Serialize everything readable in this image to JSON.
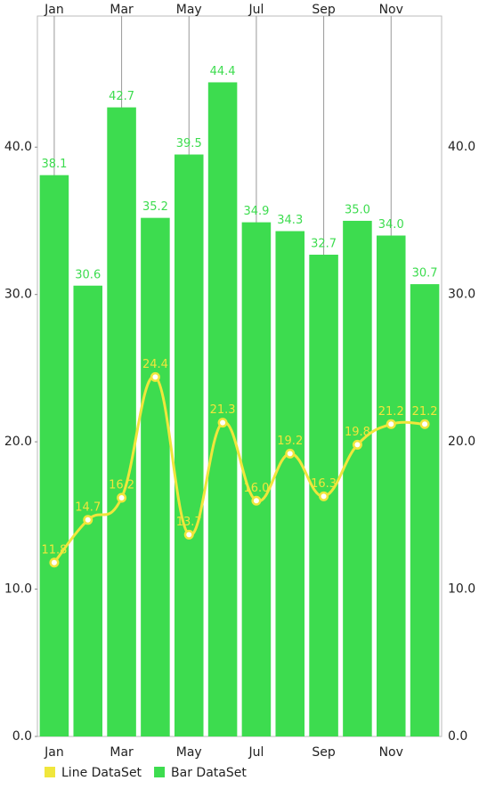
{
  "chart_data": {
    "type": "combined",
    "categories": [
      "Jan",
      null,
      "Mar",
      null,
      "May",
      null,
      "Jul",
      null,
      "Sep",
      null,
      "Nov",
      null
    ],
    "series": [
      {
        "name": "Line DataSet",
        "type": "line",
        "color": "#f0e63c",
        "values": [
          11.8,
          14.7,
          16.2,
          24.4,
          13.7,
          21.3,
          16.0,
          19.2,
          16.3,
          19.8,
          21.2,
          21.2
        ],
        "value_labels": [
          "11.8",
          "14.7",
          "16.2",
          "24.4",
          "13.7",
          "21.3",
          "16.0",
          "19.2",
          "16.3",
          "19.8",
          "21.2",
          "21.2"
        ]
      },
      {
        "name": "Bar DataSet",
        "type": "bar",
        "color": "#3ddc4f",
        "values": [
          38.1,
          30.6,
          42.7,
          35.2,
          39.5,
          44.4,
          34.9,
          34.3,
          32.7,
          35.0,
          34.0,
          30.7
        ],
        "value_labels": [
          "38.1",
          "30.6",
          "42.7",
          "35.2",
          "39.5",
          "44.4",
          "34.9",
          "34.3",
          "32.7",
          "35.0",
          "34.0",
          "30.7"
        ]
      }
    ],
    "ylim": [
      0,
      48.9
    ],
    "yticks": [
      {
        "value": 0,
        "label": "0.0"
      },
      {
        "value": 10,
        "label": "10.0"
      },
      {
        "value": 20,
        "label": "20.0"
      },
      {
        "value": 30,
        "label": "30.0"
      },
      {
        "value": 40,
        "label": "40.0"
      }
    ],
    "legend": "bottom-left"
  }
}
